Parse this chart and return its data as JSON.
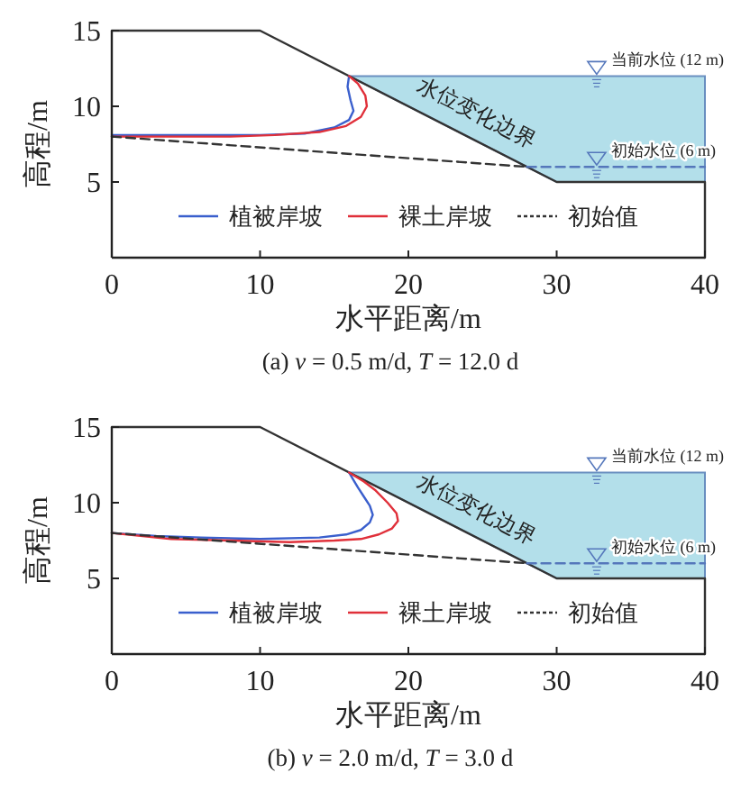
{
  "chart_data": [
    {
      "type": "line",
      "title": "(a) *v* = 0.5 m/d, *T* = 12.0 d",
      "xlabel": "水平距离/m",
      "ylabel": "高程/m",
      "xlim": [
        0,
        40
      ],
      "ylim": [
        0,
        15
      ],
      "xticks": [
        0,
        10,
        20,
        30,
        40
      ],
      "yticks": [
        5,
        10,
        15
      ],
      "legend": "bottom",
      "annotations": [
        "水位变化边界",
        "当前水位 (12 m)",
        "初始水位 (6 m)"
      ],
      "series": [
        {
          "type": "area",
          "color": "#b3dfea",
          "x": [
            16,
            40,
            40,
            30
          ],
          "values": [
            12,
            12,
            5,
            5
          ]
        },
        {
          "color": "#333333",
          "x": [
            0,
            10,
            30,
            40,
            40
          ],
          "values": [
            15,
            15,
            5,
            5,
            0
          ]
        },
        {
          "color": "#5577bb",
          "line_style": "dashed",
          "x": [
            28,
            40
          ],
          "values": [
            6,
            6
          ]
        },
        {
          "name": "植被岸坡",
          "color": "#3a5fcd",
          "x": [
            0,
            5,
            10,
            13,
            15,
            16.0,
            16.3,
            16.1,
            15.9,
            16
          ],
          "values": [
            8.1,
            8.1,
            8.1,
            8.2,
            8.6,
            9.1,
            9.7,
            10.4,
            11.3,
            12
          ]
        },
        {
          "name": "裸土岸坡",
          "color": "#e0303a",
          "x": [
            0,
            8,
            11,
            14,
            15.8,
            16.8,
            17.2,
            17.1,
            16.6,
            16
          ],
          "values": [
            8.0,
            8.0,
            8.1,
            8.3,
            8.7,
            9.3,
            10,
            10.7,
            11.5,
            12
          ]
        },
        {
          "name": "初始值",
          "color": "#333333",
          "line_style": "dashed",
          "x": [
            0,
            28
          ],
          "values": [
            8,
            6
          ]
        }
      ]
    },
    {
      "type": "line",
      "title": "(b) *v* = 2.0 m/d, *T* = 3.0 d",
      "xlabel": "水平距离/m",
      "ylabel": "高程/m",
      "xlim": [
        0,
        40
      ],
      "ylim": [
        0,
        15
      ],
      "xticks": [
        0,
        10,
        20,
        30,
        40
      ],
      "yticks": [
        5,
        10,
        15
      ],
      "legend": "bottom",
      "annotations": [
        "水位变化边界",
        "当前水位 (12 m)",
        "初始水位 (6 m)"
      ],
      "series": [
        {
          "type": "area",
          "color": "#b3dfea",
          "x": [
            16,
            40,
            40,
            30
          ],
          "values": [
            12,
            12,
            5,
            5
          ]
        },
        {
          "color": "#333333",
          "x": [
            0,
            10,
            30,
            40,
            40
          ],
          "values": [
            15,
            15,
            5,
            5,
            0
          ]
        },
        {
          "color": "#5577bb",
          "line_style": "dashed",
          "x": [
            28,
            40
          ],
          "values": [
            6,
            6
          ]
        },
        {
          "name": "植被岸坡",
          "color": "#3a5fcd",
          "x": [
            0,
            3,
            6,
            10,
            14,
            15.8,
            16.8,
            17.4,
            17.6,
            17.4,
            17.0,
            16.6,
            16.3,
            16
          ],
          "values": [
            8.0,
            7.8,
            7.7,
            7.6,
            7.7,
            7.9,
            8.2,
            8.7,
            9.2,
            9.8,
            10.4,
            11.0,
            11.5,
            12
          ]
        },
        {
          "name": "裸土岸坡",
          "color": "#e0303a",
          "x": [
            0,
            4,
            8,
            12,
            15,
            16.8,
            18,
            18.9,
            19.3,
            19.2,
            18.6,
            17.8,
            17.0,
            16
          ],
          "values": [
            8.0,
            7.6,
            7.5,
            7.4,
            7.5,
            7.6,
            7.9,
            8.3,
            8.8,
            9.3,
            10.0,
            10.8,
            11.4,
            12
          ]
        },
        {
          "name": "初始值",
          "color": "#333333",
          "line_style": "dashed",
          "x": [
            0,
            28
          ],
          "values": [
            8,
            6
          ]
        }
      ]
    }
  ]
}
